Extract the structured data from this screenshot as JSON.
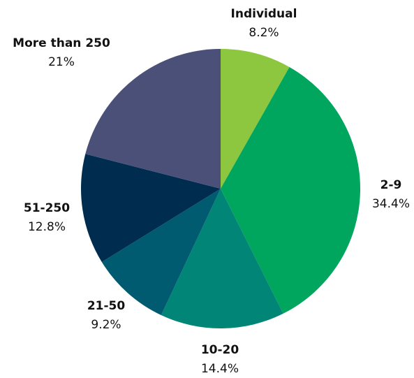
{
  "chart_data": {
    "type": "pie",
    "title": "",
    "categories": [
      "Individual",
      "2-9",
      "10-20",
      "21-50",
      "51-250",
      "More than 250"
    ],
    "values": [
      8.2,
      34.4,
      14.4,
      9.2,
      12.8,
      21
    ],
    "value_labels": [
      "8.2%",
      "34.4%",
      "14.4%",
      "9.2%",
      "12.8%",
      "21%"
    ],
    "colors": [
      "#8dc63f",
      "#00a65e",
      "#008577",
      "#005a70",
      "#002d4f",
      "#4a5078"
    ],
    "start_angle": "12 o'clock",
    "direction": "clockwise",
    "legend": "none"
  }
}
